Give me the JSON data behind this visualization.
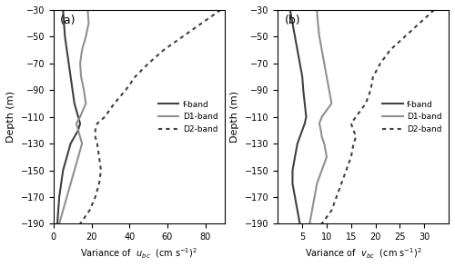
{
  "panel_a": {
    "depth": [
      -30,
      -40,
      -50,
      -60,
      -70,
      -80,
      -90,
      -100,
      -110,
      -115,
      -120,
      -125,
      -130,
      -140,
      -150,
      -160,
      -170,
      -180,
      -190
    ],
    "f_band": [
      5,
      5.5,
      6,
      7,
      8,
      9,
      10,
      11,
      13,
      14,
      13,
      11,
      9,
      7,
      5,
      4,
      3,
      2.5,
      2
    ],
    "d1_band": [
      18,
      18.5,
      17,
      15,
      14,
      14.5,
      16,
      17,
      14,
      12,
      13,
      14,
      15,
      13,
      11,
      9,
      7,
      5,
      3
    ],
    "d2_band": [
      88,
      78,
      68,
      58,
      50,
      43,
      38,
      32,
      27,
      23,
      22,
      22,
      23,
      24,
      25,
      24,
      22,
      19,
      14
    ],
    "xlabel": "Variance of  $u_{bc}$  (cm s$^{-1}$)$^2$",
    "xlim": [
      0,
      90
    ],
    "xticks": [
      0,
      20,
      40,
      60,
      80
    ],
    "label": "(a)"
  },
  "panel_b": {
    "depth": [
      -30,
      -40,
      -50,
      -60,
      -70,
      -80,
      -90,
      -100,
      -110,
      -115,
      -120,
      -125,
      -130,
      -140,
      -150,
      -160,
      -170,
      -180,
      -190
    ],
    "f_band": [
      2.5,
      3,
      3.5,
      4,
      4.5,
      5,
      5.2,
      5.5,
      5.8,
      5.5,
      5,
      4.5,
      4,
      3.5,
      3,
      3,
      3.5,
      4,
      4.5
    ],
    "d1_band": [
      8,
      8.2,
      8.5,
      9,
      9.5,
      10,
      10.5,
      11,
      9,
      8.5,
      8.8,
      9,
      9.5,
      10,
      9,
      8,
      7.5,
      7,
      6.5
    ],
    "d2_band": [
      32,
      29,
      26,
      23,
      21,
      19.5,
      19,
      18,
      16,
      15,
      15.5,
      16,
      15.5,
      15,
      14,
      13,
      12,
      11,
      9
    ],
    "xlabel": "Variance of  $v_{bc}$  (cm s$^{-1}$)$^2$",
    "xlim": [
      0,
      35
    ],
    "xticks": [
      5,
      10,
      15,
      20,
      25,
      30
    ],
    "label": "(b)"
  },
  "ylim": [
    -190,
    -30
  ],
  "yticks": [
    -190,
    -170,
    -150,
    -130,
    -110,
    -90,
    -70,
    -50,
    -30
  ],
  "ylabel": "Depth (m)",
  "f_color": "#404040",
  "d1_color": "#909090",
  "d2_color": "#404040",
  "f_lw": 1.5,
  "d1_lw": 1.5,
  "d2_lw": 1.5,
  "legend_f": "f-band",
  "legend_d1": "D1-band",
  "legend_d2": "D2-band"
}
